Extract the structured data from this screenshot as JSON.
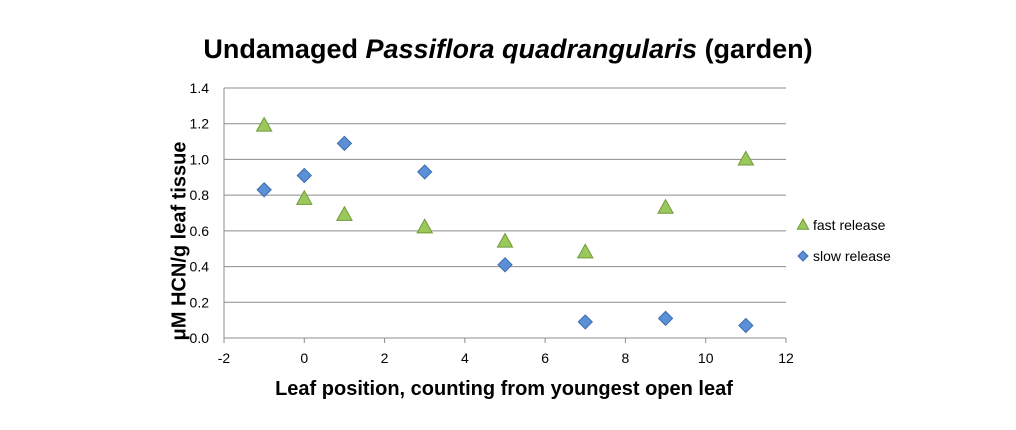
{
  "chart_data": {
    "type": "scatter",
    "title_part1": "Undamaged ",
    "title_italic": "Passiflora quadrangularis",
    "title_part2": " (garden)",
    "xlabel": "Leaf position, counting  from youngest open leaf",
    "ylabel": "μM HCN/g leaf tissue",
    "xlim": [
      -2,
      12
    ],
    "ylim": [
      0.0,
      1.4
    ],
    "x_ticks": [
      "-2",
      "0",
      "2",
      "4",
      "6",
      "8",
      "10",
      "12"
    ],
    "y_ticks": [
      "0.0",
      "0.2",
      "0.4",
      "0.6",
      "0.8",
      "1.0",
      "1.2",
      "1.4"
    ],
    "grid": "horizontal",
    "legend_position": "right",
    "series": [
      {
        "name": "fast release",
        "marker": "triangle",
        "color": "#9bc85a",
        "x": [
          -1,
          0,
          1,
          3,
          5,
          7,
          9,
          11
        ],
        "y": [
          1.19,
          0.78,
          0.69,
          0.62,
          0.54,
          0.48,
          0.73,
          1.0
        ]
      },
      {
        "name": "slow release",
        "marker": "diamond",
        "color": "#5b8fd6",
        "x": [
          -1,
          0,
          1,
          3,
          5,
          7,
          9,
          11
        ],
        "y": [
          0.83,
          0.91,
          1.09,
          0.93,
          0.41,
          0.09,
          0.11,
          0.07
        ]
      }
    ]
  }
}
